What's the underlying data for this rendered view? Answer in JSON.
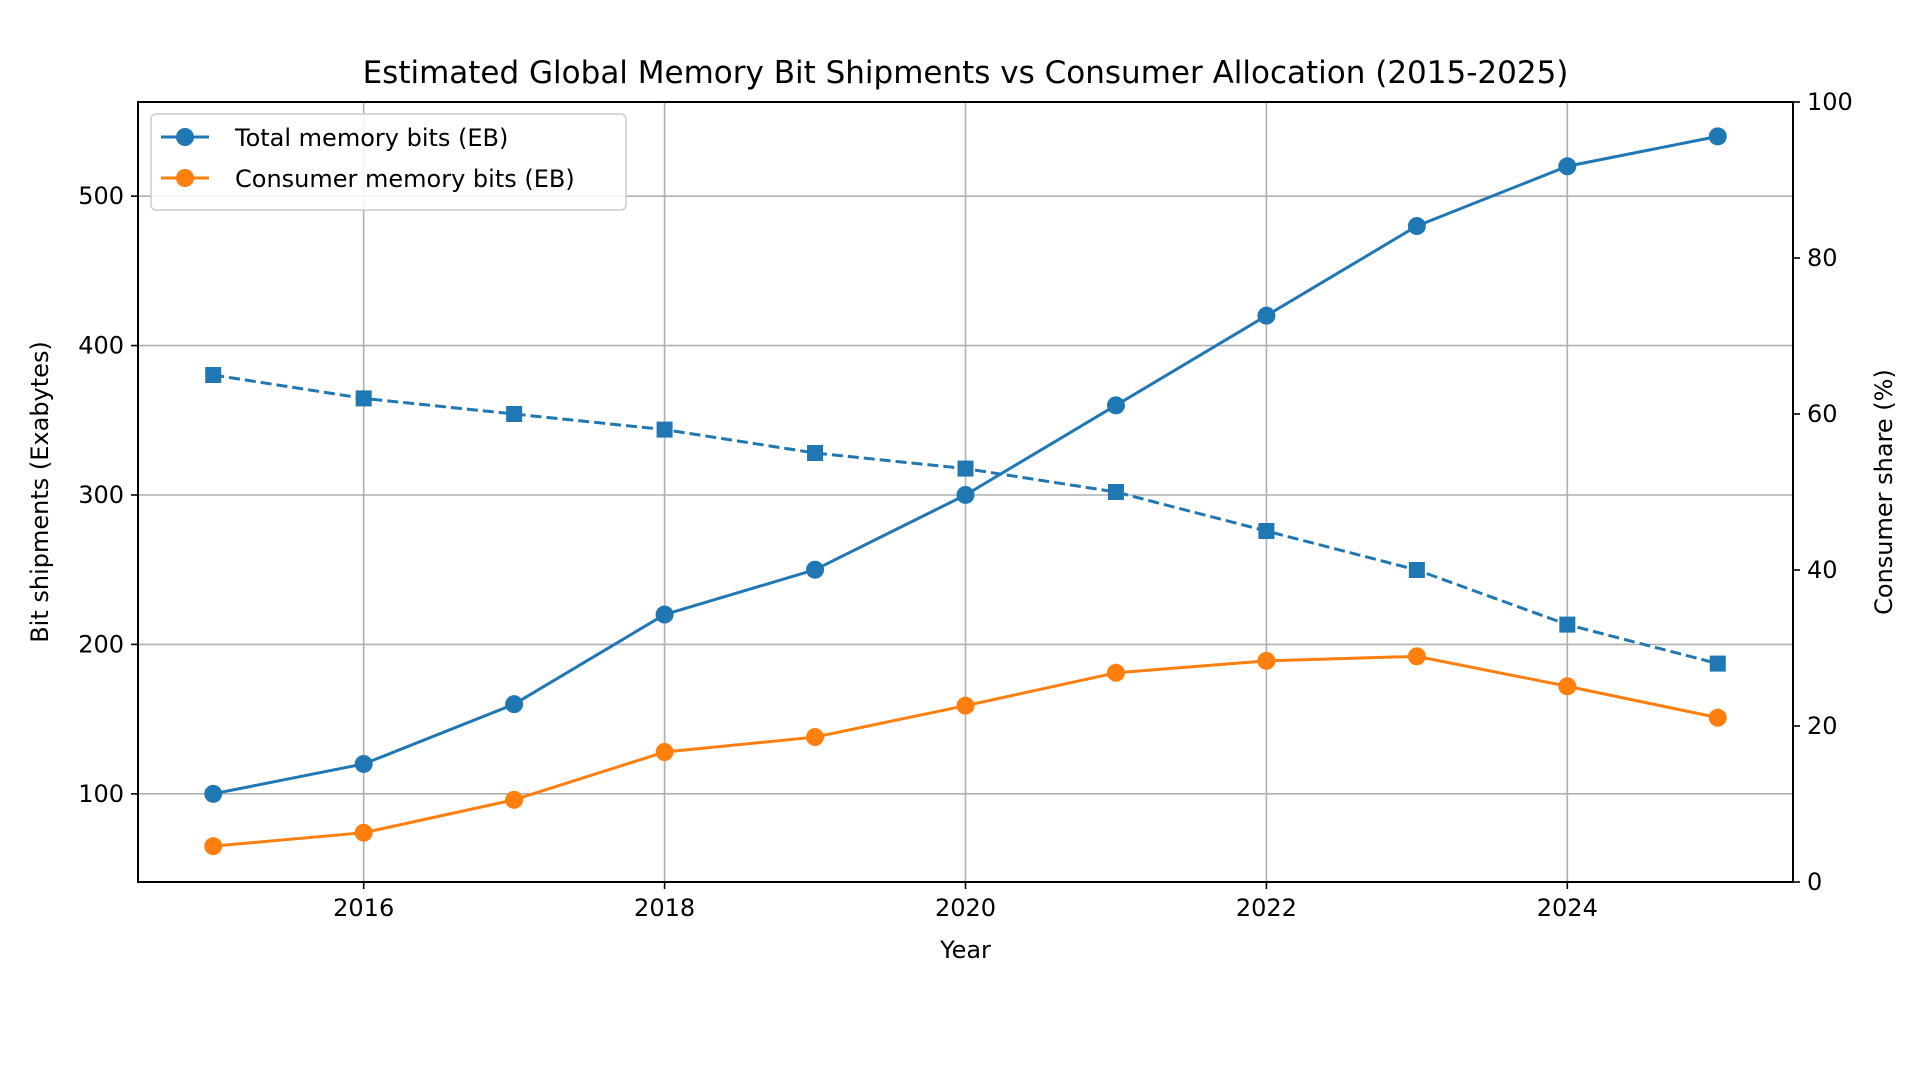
{
  "chart_data": {
    "type": "line",
    "title": "Estimated Global Memory Bit Shipments vs Consumer Allocation (2015-2025)",
    "xlabel": "Year",
    "ylabel": "Bit shipments (Exabytes)",
    "ylabel_right": "Consumer share (%)",
    "x": [
      2015,
      2016,
      2017,
      2018,
      2019,
      2020,
      2021,
      2022,
      2023,
      2024,
      2025
    ],
    "xlim": [
      2014.5,
      2025.5
    ],
    "ylim": [
      41,
      563
    ],
    "ylim_right": [
      0,
      100
    ],
    "x_ticks": [
      2016,
      2018,
      2020,
      2022,
      2024
    ],
    "y_ticks": [
      100,
      200,
      300,
      400,
      500
    ],
    "y_ticks_right": [
      0,
      20,
      40,
      60,
      80,
      100
    ],
    "grid": true,
    "legend_position": "top-left",
    "series": [
      {
        "name": "Total memory bits (EB)",
        "axis": "left",
        "color": "#1f77b4",
        "marker": "circle",
        "linestyle": "solid",
        "values": [
          100,
          120,
          160,
          220,
          250,
          300,
          360,
          420,
          480,
          520,
          540
        ]
      },
      {
        "name": "Consumer memory bits (EB)",
        "axis": "left",
        "color": "#ff7f0e",
        "marker": "circle",
        "linestyle": "solid",
        "values": [
          65,
          74,
          96,
          128,
          138,
          159,
          181,
          189,
          192,
          172,
          151
        ]
      },
      {
        "axis": "right",
        "color": "#1f77b4",
        "marker": "square",
        "linestyle": "dashed",
        "values": [
          65,
          62,
          60,
          58,
          55,
          53,
          50,
          45,
          40,
          33,
          28
        ]
      }
    ]
  }
}
